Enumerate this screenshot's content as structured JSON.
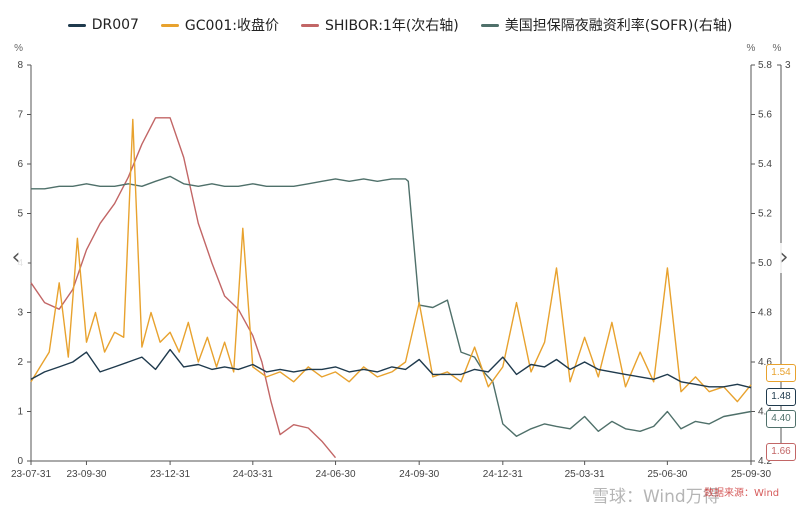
{
  "colors": {
    "dr007": "#1f3a4d",
    "gc001": "#e8a22e",
    "shibor": "#c26666",
    "sofr": "#4f706a",
    "axis": "#555555",
    "grid": "#eeeeee"
  },
  "legend": [
    {
      "label": "DR007",
      "color": "#1f3a4d"
    },
    {
      "label": "GC001:收盘价",
      "color": "#e8a22e"
    },
    {
      "label": "SHIBOR:1年(次右轴)",
      "color": "#c26666"
    },
    {
      "label": "美国担保隔夜融资利率(SOFR)(右轴)",
      "color": "#4f706a"
    }
  ],
  "axes": {
    "left_unit": "%",
    "right_unit": "%",
    "right2_unit": "%",
    "left_ticks": [
      "0",
      "1",
      "2",
      "3",
      "4",
      "5",
      "6",
      "7",
      "8"
    ],
    "right_ticks": [
      "4.2",
      "4.4",
      "4.6",
      "4.8",
      "5.0",
      "5.2",
      "5.4",
      "5.6",
      "5.8"
    ],
    "right2_ticks": [
      "3"
    ],
    "x_ticks": [
      "23-07-31",
      "23-09-30",
      "23-12-31",
      "24-03-31",
      "24-06-30",
      "24-09-30",
      "24-12-31",
      "25-03-31",
      "25-06-30",
      "25-09-30"
    ]
  },
  "end_labels": {
    "gc001": "1.54",
    "dr007": "1.48",
    "sofr": "4.40",
    "shibor": "1.66"
  },
  "nav": {
    "left": "‹",
    "right": "›"
  },
  "watermark": "雪球：Wind万得",
  "source": "数据来源：Wind",
  "chart_data": {
    "type": "line",
    "x_range": [
      "2023-07-31",
      "2025-09-30"
    ],
    "left_ylim": [
      0,
      8
    ],
    "right_ylim": [
      4.2,
      5.8
    ],
    "series": [
      {
        "name": "DR007",
        "axis": "left",
        "x": [
          "2023-07-31",
          "2023-08-15",
          "2023-08-31",
          "2023-09-15",
          "2023-09-30",
          "2023-10-15",
          "2023-10-31",
          "2023-11-15",
          "2023-11-30",
          "2023-12-15",
          "2023-12-31",
          "2024-01-15",
          "2024-01-31",
          "2024-02-15",
          "2024-02-29",
          "2024-03-15",
          "2024-03-31",
          "2024-04-15",
          "2024-04-30",
          "2024-05-15",
          "2024-05-31",
          "2024-06-15",
          "2024-06-30",
          "2024-07-15",
          "2024-07-31",
          "2024-08-15",
          "2024-08-31",
          "2024-09-15",
          "2024-09-30",
          "2024-10-15",
          "2024-10-31",
          "2024-11-15",
          "2024-11-30",
          "2024-12-15",
          "2024-12-31",
          "2025-01-15",
          "2025-01-31",
          "2025-02-15",
          "2025-02-28",
          "2025-03-15",
          "2025-03-31",
          "2025-04-15",
          "2025-04-30",
          "2025-05-15",
          "2025-05-31",
          "2025-06-15",
          "2025-06-30",
          "2025-07-15",
          "2025-07-31",
          "2025-08-15",
          "2025-08-31",
          "2025-09-15",
          "2025-09-30"
        ],
        "values": [
          1.65,
          1.8,
          1.9,
          2.0,
          2.2,
          1.8,
          1.9,
          2.0,
          2.1,
          1.85,
          2.25,
          1.9,
          1.95,
          1.85,
          1.9,
          1.85,
          1.95,
          1.8,
          1.85,
          1.8,
          1.85,
          1.85,
          1.9,
          1.8,
          1.85,
          1.8,
          1.9,
          1.85,
          2.05,
          1.75,
          1.75,
          1.75,
          1.85,
          1.8,
          2.1,
          1.75,
          1.95,
          1.9,
          2.05,
          1.85,
          2.0,
          1.85,
          1.8,
          1.75,
          1.7,
          1.65,
          1.75,
          1.6,
          1.55,
          1.5,
          1.5,
          1.55,
          1.48
        ]
      },
      {
        "name": "GC001:收盘价",
        "axis": "left",
        "x": [
          "2023-07-31",
          "2023-08-10",
          "2023-08-20",
          "2023-08-31",
          "2023-09-10",
          "2023-09-20",
          "2023-09-30",
          "2023-10-10",
          "2023-10-20",
          "2023-10-31",
          "2023-11-10",
          "2023-11-20",
          "2023-11-30",
          "2023-12-10",
          "2023-12-20",
          "2023-12-31",
          "2024-01-10",
          "2024-01-20",
          "2024-01-31",
          "2024-02-10",
          "2024-02-20",
          "2024-02-29",
          "2024-03-10",
          "2024-03-20",
          "2024-03-31",
          "2024-04-15",
          "2024-04-30",
          "2024-05-15",
          "2024-05-31",
          "2024-06-15",
          "2024-06-30",
          "2024-07-15",
          "2024-07-31",
          "2024-08-15",
          "2024-08-31",
          "2024-09-15",
          "2024-09-30",
          "2024-10-15",
          "2024-10-31",
          "2024-11-15",
          "2024-11-30",
          "2024-12-15",
          "2024-12-31",
          "2025-01-15",
          "2025-01-31",
          "2025-02-15",
          "2025-02-28",
          "2025-03-15",
          "2025-03-31",
          "2025-04-15",
          "2025-04-30",
          "2025-05-15",
          "2025-05-31",
          "2025-06-15",
          "2025-06-30",
          "2025-07-15",
          "2025-07-31",
          "2025-08-15",
          "2025-08-31",
          "2025-09-15",
          "2025-09-30"
        ],
        "values": [
          1.6,
          1.9,
          2.2,
          3.6,
          2.1,
          4.5,
          2.4,
          3.0,
          2.2,
          2.6,
          2.5,
          6.9,
          2.3,
          3.0,
          2.4,
          2.6,
          2.2,
          2.8,
          2.0,
          2.5,
          1.9,
          2.4,
          1.8,
          4.7,
          1.9,
          1.7,
          1.8,
          1.6,
          1.9,
          1.7,
          1.8,
          1.6,
          1.9,
          1.7,
          1.8,
          2.0,
          3.2,
          1.7,
          1.8,
          1.6,
          2.3,
          1.5,
          1.9,
          3.2,
          1.8,
          2.4,
          3.9,
          1.6,
          2.5,
          1.7,
          2.8,
          1.5,
          2.2,
          1.6,
          3.9,
          1.4,
          1.7,
          1.4,
          1.5,
          1.2,
          1.54
        ]
      },
      {
        "name": "SHIBOR:1年(次右轴)",
        "axis": "right2",
        "x": [
          "2023-07-31",
          "2023-08-15",
          "2023-08-31",
          "2023-09-15",
          "2023-09-30",
          "2023-10-15",
          "2023-10-31",
          "2023-11-15",
          "2023-11-30",
          "2023-12-15",
          "2023-12-31",
          "2024-01-15",
          "2024-01-31",
          "2024-02-15",
          "2024-02-29",
          "2024-03-15",
          "2024-03-31",
          "2024-04-10",
          "2024-04-20",
          "2024-04-30",
          "2024-05-15",
          "2024-05-31",
          "2024-06-15",
          "2024-06-30"
        ],
        "values": [
          2.7,
          2.4,
          2.3,
          2.6,
          3.2,
          3.6,
          3.9,
          4.3,
          4.8,
          5.2,
          5.2,
          4.6,
          3.6,
          3.0,
          2.5,
          2.3,
          1.9,
          1.5,
          0.9,
          0.4,
          0.55,
          0.5,
          0.3,
          0.05
        ]
      },
      {
        "name": "美国担保隔夜融资利率(SOFR)(右轴)",
        "axis": "right",
        "x": [
          "2023-07-31",
          "2023-08-15",
          "2023-08-31",
          "2023-09-15",
          "2023-09-30",
          "2023-10-15",
          "2023-10-31",
          "2023-11-15",
          "2023-11-30",
          "2023-12-15",
          "2023-12-31",
          "2024-01-15",
          "2024-01-31",
          "2024-02-15",
          "2024-02-29",
          "2024-03-15",
          "2024-03-31",
          "2024-04-15",
          "2024-04-30",
          "2024-05-15",
          "2024-05-31",
          "2024-06-15",
          "2024-06-30",
          "2024-07-15",
          "2024-07-31",
          "2024-08-15",
          "2024-08-31",
          "2024-09-15",
          "2024-09-18",
          "2024-09-30",
          "2024-10-15",
          "2024-10-31",
          "2024-11-15",
          "2024-11-30",
          "2024-12-10",
          "2024-12-20",
          "2024-12-31",
          "2025-01-15",
          "2025-01-31",
          "2025-02-15",
          "2025-02-28",
          "2025-03-15",
          "2025-03-31",
          "2025-04-15",
          "2025-04-30",
          "2025-05-15",
          "2025-05-31",
          "2025-06-15",
          "2025-06-30",
          "2025-07-15",
          "2025-07-31",
          "2025-08-15",
          "2025-08-31",
          "2025-09-15",
          "2025-09-30"
        ],
        "values": [
          5.3,
          5.3,
          5.31,
          5.31,
          5.32,
          5.31,
          5.31,
          5.32,
          5.31,
          5.33,
          5.35,
          5.32,
          5.31,
          5.32,
          5.31,
          5.31,
          5.32,
          5.31,
          5.31,
          5.31,
          5.32,
          5.33,
          5.34,
          5.33,
          5.34,
          5.33,
          5.34,
          5.34,
          5.33,
          4.83,
          4.82,
          4.85,
          4.64,
          4.62,
          4.56,
          4.52,
          4.35,
          4.3,
          4.33,
          4.35,
          4.34,
          4.33,
          4.38,
          4.32,
          4.36,
          4.33,
          4.32,
          4.34,
          4.4,
          4.33,
          4.36,
          4.35,
          4.38,
          4.39,
          4.4
        ]
      }
    ]
  }
}
